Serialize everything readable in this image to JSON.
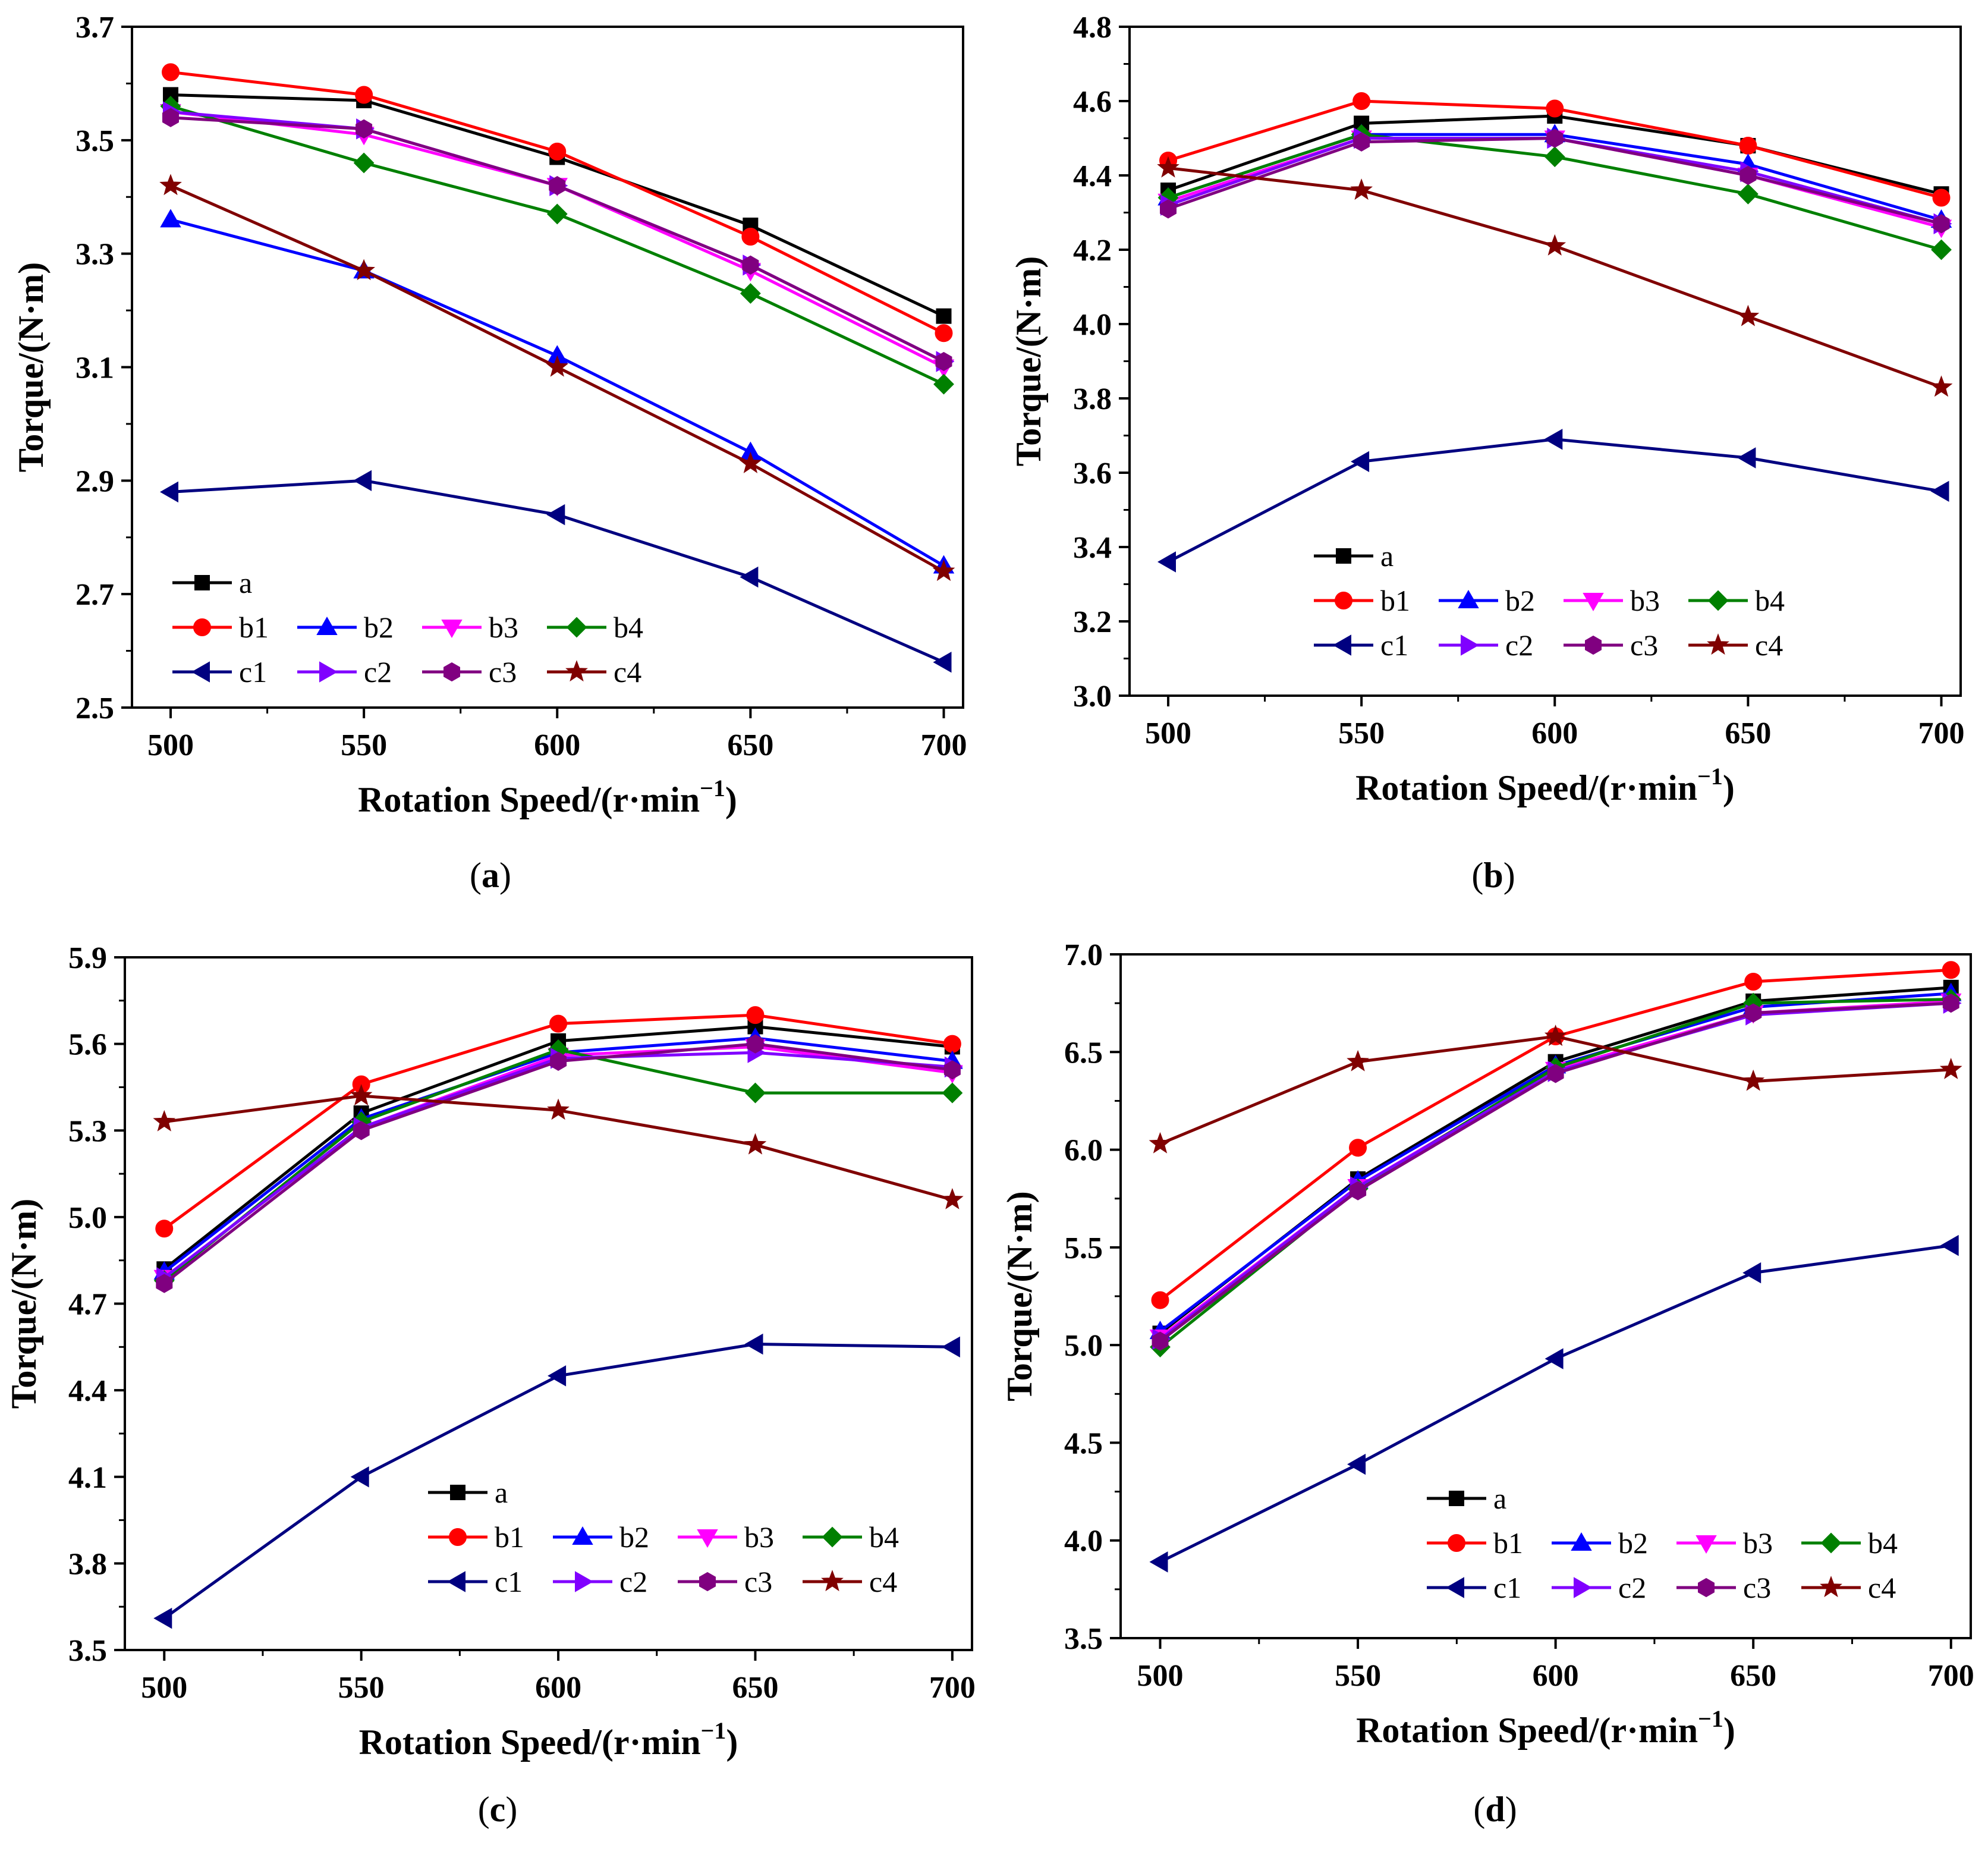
{
  "figure": {
    "series_style": [
      {
        "name": "a",
        "color": "#000000",
        "marker": "square"
      },
      {
        "name": "b1",
        "color": "#ff0000",
        "marker": "circle"
      },
      {
        "name": "b2",
        "color": "#0000ff",
        "marker": "triangle-up"
      },
      {
        "name": "b3",
        "color": "#ff00ff",
        "marker": "triangle-down"
      },
      {
        "name": "b4",
        "color": "#008000",
        "marker": "diamond"
      },
      {
        "name": "c1",
        "color": "#000080",
        "marker": "triangle-left"
      },
      {
        "name": "c2",
        "color": "#8000ff",
        "marker": "triangle-right"
      },
      {
        "name": "c3",
        "color": "#800080",
        "marker": "hexagon"
      },
      {
        "name": "c4",
        "color": "#800000",
        "marker": "star"
      }
    ]
  },
  "chart_data": [
    {
      "type": "line",
      "panel": "a",
      "caption": "(a)",
      "caption_letter": "a",
      "xlabel": "Rotation Speed/(r·min",
      "xlabel_sup": "−1",
      "xlabel_close": ")",
      "ylabel": "Torque/(N·m)",
      "x": [
        500,
        550,
        600,
        650,
        700
      ],
      "xlim": [
        490,
        705
      ],
      "ylim": [
        2.5,
        3.7
      ],
      "xticks": [
        500,
        550,
        600,
        650,
        700
      ],
      "yticks": [
        "2.5",
        "2.7",
        "2.9",
        "3.1",
        "3.3",
        "3.5",
        "3.7"
      ],
      "legend_position": "lower-left",
      "series": [
        {
          "name": "a",
          "values": [
            3.58,
            3.57,
            3.47,
            3.35,
            3.19
          ]
        },
        {
          "name": "b1",
          "values": [
            3.62,
            3.58,
            3.48,
            3.33,
            3.16
          ]
        },
        {
          "name": "b2",
          "values": [
            3.36,
            3.27,
            3.12,
            2.95,
            2.75
          ]
        },
        {
          "name": "b3",
          "values": [
            3.55,
            3.51,
            3.42,
            3.27,
            3.1
          ]
        },
        {
          "name": "b4",
          "values": [
            3.56,
            3.46,
            3.37,
            3.23,
            3.07
          ]
        },
        {
          "name": "c1",
          "values": [
            2.88,
            2.9,
            2.84,
            2.73,
            2.58
          ]
        },
        {
          "name": "c2",
          "values": [
            3.55,
            3.52,
            3.42,
            3.28,
            3.11
          ]
        },
        {
          "name": "c3",
          "values": [
            3.54,
            3.52,
            3.42,
            3.28,
            3.11
          ]
        },
        {
          "name": "c4",
          "values": [
            3.42,
            3.27,
            3.1,
            2.93,
            2.74
          ]
        }
      ]
    },
    {
      "type": "line",
      "panel": "b",
      "caption": "(b)",
      "caption_letter": "b",
      "xlabel": "Rotation Speed/(r·min",
      "xlabel_sup": "−1",
      "xlabel_close": ")",
      "ylabel": "Torque/(N·m)",
      "x": [
        500,
        550,
        600,
        650,
        700
      ],
      "xlim": [
        490,
        705
      ],
      "ylim": [
        3.0,
        4.8
      ],
      "xticks": [
        500,
        550,
        600,
        650,
        700
      ],
      "yticks": [
        "3.0",
        "3.2",
        "3.4",
        "3.6",
        "3.8",
        "4.0",
        "4.2",
        "4.4",
        "4.6",
        "4.8"
      ],
      "legend_position": "lower-left",
      "series": [
        {
          "name": "a",
          "values": [
            4.36,
            4.54,
            4.56,
            4.48,
            4.35
          ]
        },
        {
          "name": "b1",
          "values": [
            4.44,
            4.6,
            4.58,
            4.48,
            4.34
          ]
        },
        {
          "name": "b2",
          "values": [
            4.34,
            4.51,
            4.51,
            4.43,
            4.28
          ]
        },
        {
          "name": "b3",
          "values": [
            4.33,
            4.5,
            4.5,
            4.4,
            4.26
          ]
        },
        {
          "name": "b4",
          "values": [
            4.34,
            4.51,
            4.45,
            4.35,
            4.2
          ]
        },
        {
          "name": "c1",
          "values": [
            3.36,
            3.63,
            3.69,
            3.64,
            3.55
          ]
        },
        {
          "name": "c2",
          "values": [
            4.32,
            4.5,
            4.5,
            4.41,
            4.27
          ]
        },
        {
          "name": "c3",
          "values": [
            4.31,
            4.49,
            4.5,
            4.4,
            4.27
          ]
        },
        {
          "name": "c4",
          "values": [
            4.42,
            4.36,
            4.21,
            4.02,
            3.83
          ]
        }
      ]
    },
    {
      "type": "line",
      "panel": "c",
      "caption": "(c)",
      "caption_letter": "c",
      "xlabel": "Rotation Speed/(r·min",
      "xlabel_sup": "−1",
      "xlabel_close": ")",
      "ylabel": "Torque/(N·m)",
      "x": [
        500,
        550,
        600,
        650,
        700
      ],
      "xlim": [
        490,
        705
      ],
      "ylim": [
        3.5,
        5.9
      ],
      "xticks": [
        500,
        550,
        600,
        650,
        700
      ],
      "yticks": [
        "3.5",
        "3.8",
        "4.1",
        "4.4",
        "4.7",
        "5.0",
        "5.3",
        "5.6",
        "5.9"
      ],
      "legend_position": "lower-right",
      "series": [
        {
          "name": "a",
          "values": [
            4.82,
            5.36,
            5.61,
            5.66,
            5.59
          ]
        },
        {
          "name": "b1",
          "values": [
            4.96,
            5.46,
            5.67,
            5.7,
            5.6
          ]
        },
        {
          "name": "b2",
          "values": [
            4.81,
            5.34,
            5.57,
            5.62,
            5.54
          ]
        },
        {
          "name": "b3",
          "values": [
            4.79,
            5.31,
            5.56,
            5.59,
            5.5
          ]
        },
        {
          "name": "b4",
          "values": [
            4.78,
            5.33,
            5.58,
            5.43,
            5.43
          ]
        },
        {
          "name": "c1",
          "values": [
            3.61,
            4.1,
            4.45,
            4.56,
            4.55
          ]
        },
        {
          "name": "c2",
          "values": [
            4.79,
            5.31,
            5.55,
            5.57,
            5.52
          ]
        },
        {
          "name": "c3",
          "values": [
            4.77,
            5.3,
            5.54,
            5.6,
            5.51
          ]
        },
        {
          "name": "c4",
          "values": [
            5.33,
            5.42,
            5.37,
            5.25,
            5.06
          ]
        }
      ]
    },
    {
      "type": "line",
      "panel": "d",
      "caption": "(d)",
      "caption_letter": "d",
      "xlabel": "Rotation Speed/(r·min",
      "xlabel_sup": "−1",
      "xlabel_close": ")",
      "ylabel": "Torque/(N·m)",
      "x": [
        500,
        550,
        600,
        650,
        700
      ],
      "xlim": [
        490,
        705
      ],
      "ylim": [
        3.5,
        7.0
      ],
      "xticks": [
        500,
        550,
        600,
        650,
        700
      ],
      "yticks": [
        "3.5",
        "4.0",
        "4.5",
        "5.0",
        "5.5",
        "6.0",
        "6.5",
        "7.0"
      ],
      "legend_position": "lower-right",
      "series": [
        {
          "name": "a",
          "values": [
            5.06,
            5.85,
            6.45,
            6.76,
            6.83
          ]
        },
        {
          "name": "b1",
          "values": [
            5.23,
            6.01,
            6.58,
            6.86,
            6.92
          ]
        },
        {
          "name": "b2",
          "values": [
            5.07,
            5.84,
            6.43,
            6.73,
            6.8
          ]
        },
        {
          "name": "b3",
          "values": [
            5.04,
            5.81,
            6.41,
            6.7,
            6.76
          ]
        },
        {
          "name": "b4",
          "values": [
            4.99,
            5.8,
            6.42,
            6.75,
            6.77
          ]
        },
        {
          "name": "c1",
          "values": [
            3.89,
            4.39,
            4.93,
            5.37,
            5.51
          ]
        },
        {
          "name": "c2",
          "values": [
            5.03,
            5.81,
            6.4,
            6.69,
            6.75
          ]
        },
        {
          "name": "c3",
          "values": [
            5.02,
            5.79,
            6.39,
            6.7,
            6.75
          ]
        },
        {
          "name": "c4",
          "values": [
            6.03,
            6.45,
            6.58,
            6.35,
            6.41
          ]
        }
      ]
    }
  ]
}
